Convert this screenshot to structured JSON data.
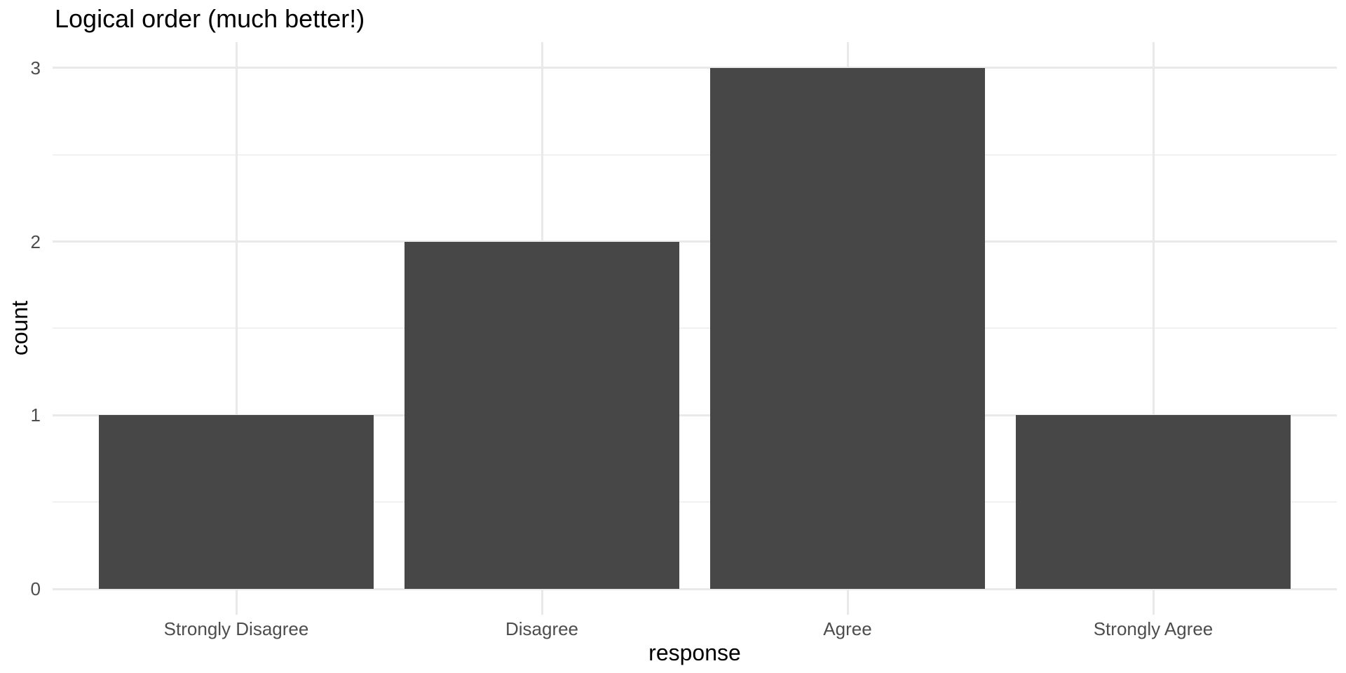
{
  "chart_data": {
    "type": "bar",
    "title": "Logical order (much better!)",
    "xlabel": "response",
    "ylabel": "count",
    "categories": [
      "Strongly Disagree",
      "Disagree",
      "Agree",
      "Strongly Agree"
    ],
    "values": [
      1,
      2,
      3,
      1
    ],
    "yticks": [
      0,
      1,
      2,
      3
    ],
    "minor_yticks": [
      0.5,
      1.5,
      2.5
    ],
    "ylim": [
      0,
      3.15
    ],
    "grid": "on",
    "legend": "none",
    "colors": {
      "bar_fill": "#474747",
      "grid_major": "#e9e9e9",
      "grid_minor": "#f1f1f1",
      "tick_label": "#4d4d4d",
      "title": "#000000",
      "axis_title": "#000000",
      "background": "#ffffff"
    }
  }
}
